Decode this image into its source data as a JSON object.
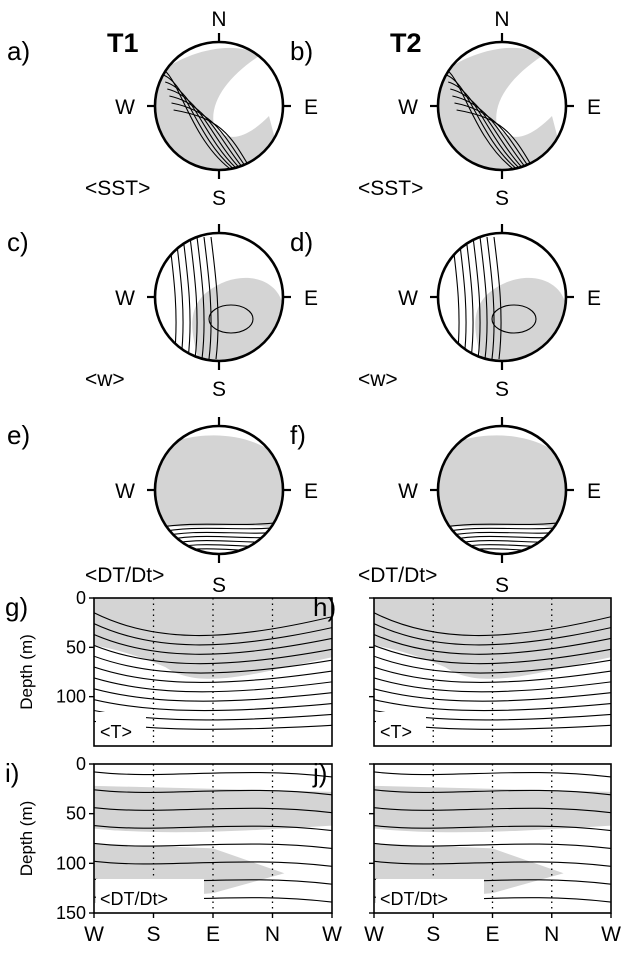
{
  "figure": {
    "columns": [
      "T1",
      "T2"
    ],
    "compass": {
      "north": "N",
      "south": "S",
      "west": "W",
      "east": "E"
    },
    "panels": {
      "a": "a)",
      "b": "b)",
      "c": "c)",
      "d": "d)",
      "e": "e)",
      "f": "f)",
      "g": "g)",
      "h": "h)",
      "i": "i)",
      "j": "j)"
    },
    "map_rows": [
      {
        "left": "a",
        "right": "b",
        "variable": "<SST>"
      },
      {
        "left": "c",
        "right": "d",
        "variable": "<w>"
      },
      {
        "left": "e",
        "right": "f",
        "variable": "<DT/Dt>"
      }
    ],
    "depth_rows": [
      {
        "left": "g",
        "right": "h",
        "variable": "<T>"
      },
      {
        "left": "i",
        "right": "j",
        "variable": "<DT/Dt>"
      }
    ],
    "colors": {
      "shade": "#d4d4d4",
      "ink": "#000000",
      "background": "#ffffff"
    }
  },
  "chart_data": [
    {
      "type": "heatmap",
      "variant": "polar contour map",
      "panels": [
        "a)",
        "b)",
        "c)",
        "d)",
        "e)",
        "f)"
      ],
      "titles": [
        "T1",
        "T2"
      ],
      "variables": [
        "<SST>",
        "<w>",
        "<DT/Dt>"
      ],
      "directions": [
        "N",
        "E",
        "S",
        "W"
      ],
      "grid": false
    },
    {
      "type": "heatmap",
      "variant": "depth-section contour",
      "panels": [
        "g)",
        "h)",
        "i)",
        "j)"
      ],
      "variables": [
        "<T>",
        "<DT/Dt>"
      ],
      "x_ticks": [
        "W",
        "S",
        "E",
        "N",
        "W"
      ],
      "x_dotted_lines": [
        "S",
        "E",
        "N"
      ],
      "ylabel": "Depth (m)",
      "yticks": [
        0,
        50,
        100,
        150
      ],
      "ylim": [
        150,
        0
      ],
      "grid": false
    }
  ]
}
